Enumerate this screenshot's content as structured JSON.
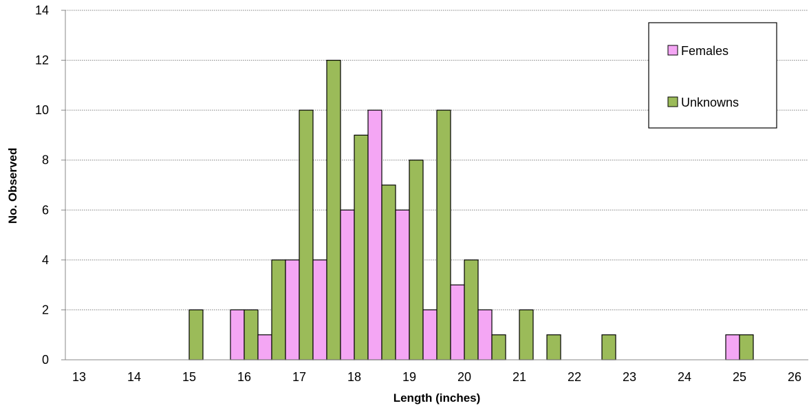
{
  "chart_data": {
    "type": "bar",
    "xlabel": "Length (inches)",
    "ylabel": "No. Observed",
    "xlim": [
      13,
      26
    ],
    "ylim": [
      0,
      14
    ],
    "x_ticks": [
      13,
      14,
      15,
      16,
      17,
      18,
      19,
      20,
      21,
      22,
      23,
      24,
      25,
      26
    ],
    "y_ticks": [
      0,
      2,
      4,
      6,
      8,
      10,
      12,
      14
    ],
    "grid": "horizontal-dotted",
    "legend_position": "top-right",
    "bin_width": 0.5,
    "bins": [
      15,
      15.5,
      16,
      16.5,
      17,
      17.5,
      18,
      18.5,
      19,
      19.5,
      20,
      20.5,
      21,
      21.5,
      22,
      22.5,
      23,
      23.5,
      24,
      24.5,
      25
    ],
    "series": [
      {
        "name": "Females",
        "color": "#f4a6f4",
        "values": [
          0,
          0,
          2,
          1,
          4,
          4,
          6,
          10,
          6,
          2,
          3,
          2,
          0,
          0,
          0,
          0,
          0,
          0,
          0,
          0,
          1
        ]
      },
      {
        "name": "Unknowns",
        "color": "#9bbb59",
        "values": [
          2,
          0,
          2,
          4,
          10,
          12,
          9,
          7,
          8,
          10,
          4,
          1,
          2,
          1,
          0,
          1,
          0,
          0,
          0,
          0,
          1
        ]
      }
    ]
  }
}
